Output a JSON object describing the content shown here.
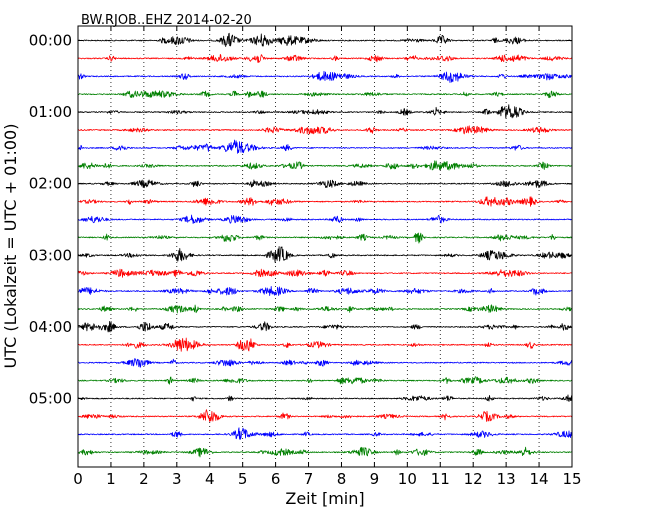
{
  "chart_data": {
    "type": "line",
    "title": "BW.RJOB..EHZ 2014-02-20",
    "xlabel": "Zeit  [min]",
    "ylabel": "UTC (Lokalzeit = UTC + 01:00)",
    "xlim": [
      0,
      15
    ],
    "x_ticks": [
      "0",
      "1",
      "2",
      "3",
      "4",
      "5",
      "6",
      "7",
      "8",
      "9",
      "10",
      "11",
      "12",
      "13",
      "14",
      "15"
    ],
    "y_tick_labels": [
      "00:00",
      "01:00",
      "02:00",
      "03:00",
      "04:00",
      "05:00"
    ],
    "grid": "vertical dotted",
    "trace_interval_min": 15,
    "trace_count": 24,
    "trace_colors": [
      "#000000",
      "#ff0000",
      "#0000ff",
      "#008000"
    ],
    "trace_start_times": [
      "00:00",
      "00:15",
      "00:30",
      "00:45",
      "01:00",
      "01:15",
      "01:30",
      "01:45",
      "02:00",
      "02:15",
      "02:30",
      "02:45",
      "03:00",
      "03:15",
      "03:30",
      "03:45",
      "04:00",
      "04:15",
      "04:30",
      "04:45",
      "05:00",
      "05:15",
      "05:30",
      "05:45"
    ]
  }
}
